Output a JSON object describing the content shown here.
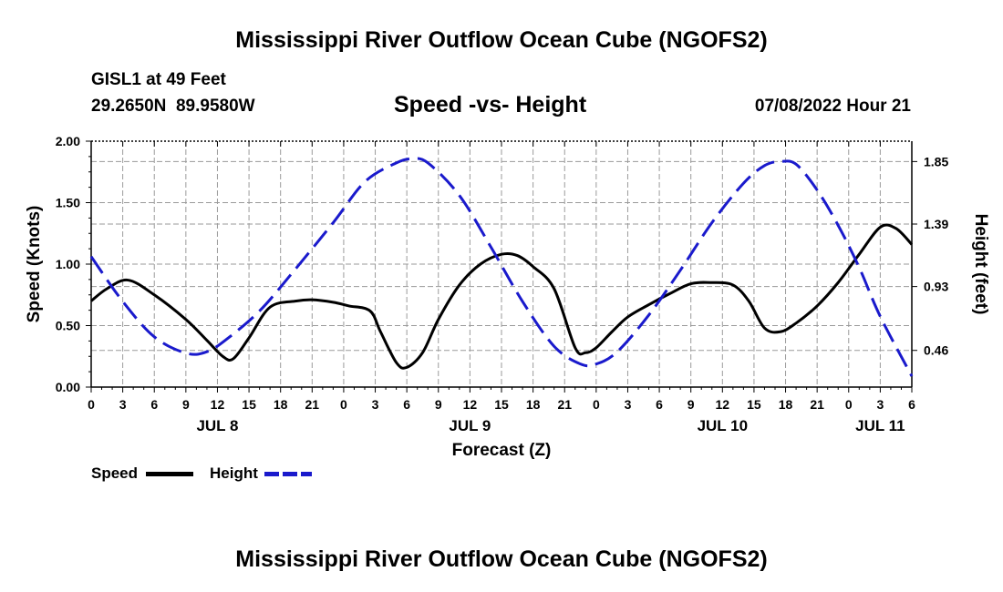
{
  "title": "Mississippi River Outflow Ocean Cube (NGOFS2)",
  "station": {
    "name_depth": "GISL1 at 49 Feet",
    "coords": "29.2650N  89.9580W",
    "datetime": "07/08/2022 Hour 21"
  },
  "footer_title": "Mississippi River Outflow Ocean Cube (NGOFS2)",
  "legend": {
    "speed_label": "Speed",
    "height_label": "Height"
  },
  "colors": {
    "speed": "#000000",
    "height": "#1a1acc",
    "grid": "#9a9a9a"
  },
  "chart_data": {
    "type": "line",
    "title": "Speed -vs- Height",
    "xlabel": "Forecast (Z)",
    "ylabel": "Speed (Knots)",
    "y2label": "Height (feet)",
    "xlim": [
      0,
      78
    ],
    "ylim": [
      0,
      2.0
    ],
    "y2lim": [
      0.19,
      2.0
    ],
    "grid": true,
    "legend_position": "bottom-left",
    "x_ticks": [
      {
        "x": 0,
        "label": "0"
      },
      {
        "x": 3,
        "label": "3"
      },
      {
        "x": 6,
        "label": "6"
      },
      {
        "x": 9,
        "label": "9"
      },
      {
        "x": 12,
        "label": "12"
      },
      {
        "x": 15,
        "label": "15"
      },
      {
        "x": 18,
        "label": "18"
      },
      {
        "x": 21,
        "label": "21"
      },
      {
        "x": 24,
        "label": "0"
      },
      {
        "x": 27,
        "label": "3"
      },
      {
        "x": 30,
        "label": "6"
      },
      {
        "x": 33,
        "label": "9"
      },
      {
        "x": 36,
        "label": "12"
      },
      {
        "x": 39,
        "label": "15"
      },
      {
        "x": 42,
        "label": "18"
      },
      {
        "x": 45,
        "label": "21"
      },
      {
        "x": 48,
        "label": "0"
      },
      {
        "x": 51,
        "label": "3"
      },
      {
        "x": 54,
        "label": "6"
      },
      {
        "x": 57,
        "label": "9"
      },
      {
        "x": 60,
        "label": "12"
      },
      {
        "x": 63,
        "label": "15"
      },
      {
        "x": 66,
        "label": "18"
      },
      {
        "x": 69,
        "label": "21"
      },
      {
        "x": 72,
        "label": "0"
      },
      {
        "x": 75,
        "label": "3"
      },
      {
        "x": 78,
        "label": "6"
      }
    ],
    "day_labels": [
      {
        "x": 12,
        "label": "JUL 8"
      },
      {
        "x": 36,
        "label": "JUL 9"
      },
      {
        "x": 60,
        "label": "JUL 10"
      },
      {
        "x": 75,
        "label": "JUL 11"
      }
    ],
    "y_ticks": [
      {
        "y": 0.0,
        "label": "0.00"
      },
      {
        "y": 0.5,
        "label": "0.50"
      },
      {
        "y": 1.0,
        "label": "1.00"
      },
      {
        "y": 1.5,
        "label": "1.50"
      },
      {
        "y": 2.0,
        "label": "2.00"
      }
    ],
    "y2_ticks": [
      {
        "y": 0.46,
        "label": "0.46"
      },
      {
        "y": 0.93,
        "label": "0.93"
      },
      {
        "y": 1.39,
        "label": "1.39"
      },
      {
        "y": 1.85,
        "label": "1.85"
      }
    ],
    "series": [
      {
        "name": "Speed",
        "axis": "left",
        "style": "solid",
        "x": [
          0,
          1.5,
          3.5,
          6,
          9,
          11,
          12.5,
          13.5,
          15,
          17,
          19.5,
          21,
          23,
          24.5,
          26.5,
          27.5,
          29,
          30,
          31.5,
          33,
          35,
          37,
          39,
          40.5,
          42,
          44,
          46,
          47,
          48,
          49.5,
          51,
          53,
          55,
          57,
          59,
          61,
          62.5,
          64,
          65.5,
          67,
          69,
          71,
          73,
          75,
          76.5,
          78
        ],
        "y": [
          0.7,
          0.8,
          0.87,
          0.75,
          0.55,
          0.38,
          0.25,
          0.23,
          0.4,
          0.65,
          0.7,
          0.71,
          0.69,
          0.66,
          0.62,
          0.45,
          0.2,
          0.16,
          0.28,
          0.55,
          0.83,
          1.0,
          1.08,
          1.07,
          0.98,
          0.8,
          0.32,
          0.28,
          0.32,
          0.45,
          0.57,
          0.67,
          0.76,
          0.84,
          0.85,
          0.83,
          0.7,
          0.48,
          0.45,
          0.52,
          0.66,
          0.85,
          1.08,
          1.3,
          1.29,
          1.16
        ]
      },
      {
        "name": "Height",
        "axis": "right",
        "style": "dashed",
        "x": [
          0,
          3,
          6,
          9,
          11,
          13,
          16,
          19,
          23,
          26,
          29,
          30.5,
          32,
          35,
          38,
          41,
          44,
          46.5,
          48,
          50,
          53,
          56,
          59,
          62,
          64,
          65.5,
          67,
          69,
          71,
          73,
          75,
          78
        ],
        "y": [
          1.15,
          0.82,
          0.56,
          0.44,
          0.45,
          0.55,
          0.75,
          1.02,
          1.4,
          1.7,
          1.84,
          1.87,
          1.84,
          1.6,
          1.22,
          0.82,
          0.49,
          0.36,
          0.36,
          0.45,
          0.72,
          1.05,
          1.4,
          1.69,
          1.82,
          1.85,
          1.83,
          1.64,
          1.38,
          1.07,
          0.71,
          0.27
        ]
      }
    ]
  }
}
